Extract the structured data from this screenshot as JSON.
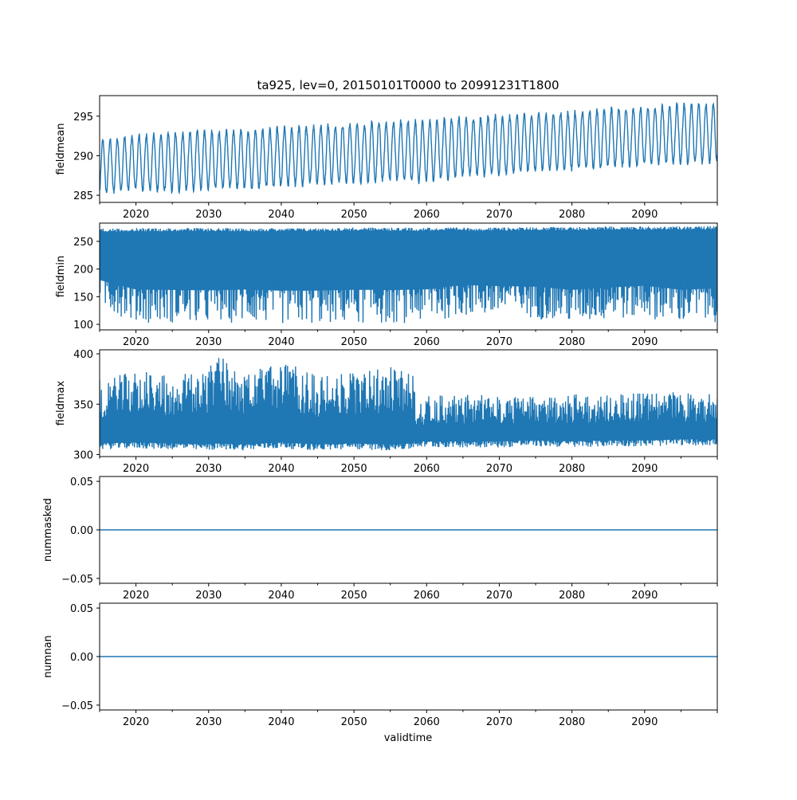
{
  "figure": {
    "title": "ta925, lev=0, 20150101T0000 to 20991231T1800",
    "xlabel": "validtime"
  },
  "chart_data": [
    {
      "type": "line",
      "ylabel": "fieldmean",
      "xlim": [
        2015.0,
        2100.0
      ],
      "ylim": [
        284.1,
        297.6
      ],
      "yticks": [
        285,
        290,
        295
      ],
      "ytick_labels": [
        "285",
        "290",
        "295"
      ],
      "xticks": [
        2020,
        2030,
        2040,
        2050,
        2060,
        2070,
        2080,
        2090
      ],
      "xtick_labels": [
        "2020",
        "2030",
        "2040",
        "2050",
        "2060",
        "2070",
        "2080",
        "2090"
      ],
      "color": "#1f77b4",
      "series": [
        {
          "x": [
            2015,
            2020,
            2025,
            2030,
            2035,
            2040,
            2045,
            2050,
            2055,
            2060,
            2065,
            2070,
            2075,
            2080,
            2085,
            2090,
            2095,
            2100
          ],
          "min": [
            285.0,
            285.4,
            285.2,
            285.6,
            285.6,
            285.8,
            286.2,
            286.3,
            286.6,
            286.4,
            287.2,
            287.3,
            287.8,
            288.0,
            288.3,
            288.6,
            288.7,
            289.0
          ],
          "max": [
            292.2,
            292.8,
            293.1,
            293.4,
            293.5,
            293.8,
            294.1,
            294.3,
            294.6,
            294.8,
            295.1,
            295.3,
            295.6,
            295.8,
            296.2,
            296.3,
            296.8,
            296.9
          ]
        }
      ]
    },
    {
      "type": "line",
      "ylabel": "fieldmin",
      "xlim": [
        2015.0,
        2100.0
      ],
      "ylim": [
        90,
        283
      ],
      "yticks": [
        100,
        150,
        200,
        250
      ],
      "ytick_labels": [
        "100",
        "150",
        "200",
        "250"
      ],
      "xticks": [
        2020,
        2030,
        2040,
        2050,
        2060,
        2070,
        2080,
        2090
      ],
      "xtick_labels": [
        "2020",
        "2030",
        "2040",
        "2050",
        "2060",
        "2070",
        "2080",
        "2090"
      ],
      "color": "#1f77b4",
      "series": [
        {
          "x": [
            2015,
            2020,
            2025,
            2030,
            2035,
            2040,
            2045,
            2050,
            2055,
            2060,
            2065,
            2070,
            2075,
            2080,
            2085,
            2090,
            2095,
            2100
          ],
          "min": [
            130,
            103,
            102,
            101,
            103,
            100,
            100,
            102,
            101,
            103,
            115,
            112,
            110,
            101,
            107,
            112,
            101,
            104
          ],
          "max": [
            273,
            274,
            274,
            274,
            274,
            274,
            274,
            275,
            275,
            275,
            275,
            275,
            276,
            276,
            277,
            277,
            277,
            278
          ]
        }
      ]
    },
    {
      "type": "line",
      "ylabel": "fieldmax",
      "xlim": [
        2015.0,
        2100.0
      ],
      "ylim": [
        298,
        404
      ],
      "yticks": [
        300,
        350,
        400
      ],
      "ytick_labels": [
        "300",
        "350",
        "400"
      ],
      "xticks": [
        2020,
        2030,
        2040,
        2050,
        2060,
        2070,
        2080,
        2090
      ],
      "xtick_labels": [
        "2020",
        "2030",
        "2040",
        "2050",
        "2060",
        "2070",
        "2080",
        "2090"
      ],
      "color": "#1f77b4",
      "series": [
        {
          "x": [
            2015,
            2020,
            2025,
            2030,
            2031,
            2035,
            2040,
            2045,
            2050,
            2055,
            2058,
            2058.5,
            2060,
            2065,
            2070,
            2075,
            2080,
            2085,
            2090,
            2095,
            2100
          ],
          "min": [
            305,
            306,
            305,
            304,
            305,
            304,
            306,
            304,
            305,
            304,
            305,
            307,
            307,
            307,
            307,
            308,
            307,
            308,
            308,
            309,
            309
          ],
          "max": [
            375,
            386,
            380,
            383,
            403,
            380,
            394,
            378,
            381,
            388,
            385,
            355,
            358,
            360,
            358,
            358,
            360,
            360,
            362,
            362,
            360
          ]
        }
      ]
    },
    {
      "type": "line",
      "ylabel": "nummasked",
      "xlim": [
        2015.0,
        2100.0
      ],
      "ylim": [
        -0.055,
        0.055
      ],
      "yticks": [
        -0.05,
        0.0,
        0.05
      ],
      "ytick_labels": [
        "−0.05",
        "0.00",
        "0.05"
      ],
      "xticks": [
        2020,
        2030,
        2040,
        2050,
        2060,
        2070,
        2080,
        2090
      ],
      "xtick_labels": [
        "2020",
        "2030",
        "2040",
        "2050",
        "2060",
        "2070",
        "2080",
        "2090"
      ],
      "color": "#1f77b4",
      "series": [
        {
          "x": [
            2015,
            2100
          ],
          "y": [
            0,
            0
          ]
        }
      ]
    },
    {
      "type": "line",
      "ylabel": "numnan",
      "xlim": [
        2015.0,
        2100.0
      ],
      "ylim": [
        -0.055,
        0.055
      ],
      "yticks": [
        -0.05,
        0.0,
        0.05
      ],
      "ytick_labels": [
        "−0.05",
        "0.00",
        "0.05"
      ],
      "xticks": [
        2020,
        2030,
        2040,
        2050,
        2060,
        2070,
        2080,
        2090
      ],
      "xtick_labels": [
        "2020",
        "2030",
        "2040",
        "2050",
        "2060",
        "2070",
        "2080",
        "2090"
      ],
      "color": "#1f77b4",
      "series": [
        {
          "x": [
            2015,
            2100
          ],
          "y": [
            0,
            0
          ]
        }
      ]
    }
  ]
}
